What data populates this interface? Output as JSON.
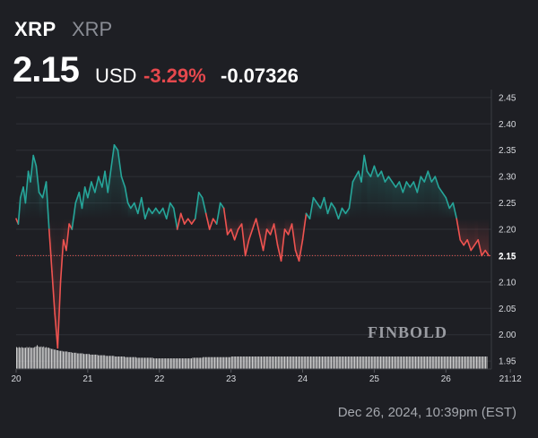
{
  "header": {
    "symbol": "XRP",
    "name": "XRP",
    "price": "2.15",
    "currency": "USD",
    "change_pct": "-3.29%",
    "change_abs": "-0.07326"
  },
  "watermark": "FINBOLD",
  "footer": {
    "timestamp": "Dec 26, 2024, 10:39pm (EST)"
  },
  "colors": {
    "background": "#1e1f24",
    "up": "#26a69a",
    "down": "#ef5350",
    "volume": "#e6e6e6",
    "grid": "#2e3036"
  },
  "chart_data": {
    "type": "line",
    "ylim": [
      1.935,
      2.465
    ],
    "y_ticks": [
      "2.45",
      "2.40",
      "2.35",
      "2.30",
      "2.25",
      "2.20",
      "2.15",
      "2.10",
      "2.05",
      "2.00",
      "1.95"
    ],
    "x_ticks": [
      {
        "label": "20",
        "x": 20
      },
      {
        "label": "21",
        "x": 21
      },
      {
        "label": "22",
        "x": 22
      },
      {
        "label": "23",
        "x": 23
      },
      {
        "label": "24",
        "x": 24
      },
      {
        "label": "25",
        "x": 25
      },
      {
        "label": "26",
        "x": 26
      },
      {
        "label": "21:12",
        "x": 26.9
      }
    ],
    "xlim": [
      20,
      27
    ],
    "baseline": 2.22,
    "last_value": "2.15",
    "series": [
      {
        "values": [
          [
            20.0,
            2.22
          ],
          [
            20.03,
            2.21
          ],
          [
            20.06,
            2.26
          ],
          [
            20.1,
            2.28
          ],
          [
            20.13,
            2.25
          ],
          [
            20.17,
            2.31
          ],
          [
            20.2,
            2.29
          ],
          [
            20.24,
            2.34
          ],
          [
            20.28,
            2.32
          ],
          [
            20.32,
            2.27
          ],
          [
            20.37,
            2.26
          ],
          [
            20.42,
            2.29
          ],
          [
            20.46,
            2.2
          ],
          [
            20.5,
            2.12
          ],
          [
            20.54,
            2.04
          ],
          [
            20.58,
            1.975
          ],
          [
            20.62,
            2.1
          ],
          [
            20.66,
            2.18
          ],
          [
            20.7,
            2.16
          ],
          [
            20.74,
            2.21
          ],
          [
            20.78,
            2.2
          ],
          [
            20.83,
            2.25
          ],
          [
            20.88,
            2.27
          ],
          [
            20.92,
            2.24
          ],
          [
            20.96,
            2.28
          ],
          [
            21.0,
            2.26
          ],
          [
            21.05,
            2.29
          ],
          [
            21.1,
            2.27
          ],
          [
            21.15,
            2.3
          ],
          [
            21.2,
            2.28
          ],
          [
            21.24,
            2.31
          ],
          [
            21.28,
            2.27
          ],
          [
            21.33,
            2.32
          ],
          [
            21.37,
            2.36
          ],
          [
            21.42,
            2.35
          ],
          [
            21.47,
            2.3
          ],
          [
            21.52,
            2.28
          ],
          [
            21.56,
            2.25
          ],
          [
            21.6,
            2.24
          ],
          [
            21.65,
            2.25
          ],
          [
            21.7,
            2.23
          ],
          [
            21.75,
            2.26
          ],
          [
            21.8,
            2.22
          ],
          [
            21.85,
            2.24
          ],
          [
            21.9,
            2.23
          ],
          [
            21.95,
            2.24
          ],
          [
            22.0,
            2.23
          ],
          [
            22.05,
            2.24
          ],
          [
            22.1,
            2.22
          ],
          [
            22.15,
            2.25
          ],
          [
            22.2,
            2.24
          ],
          [
            22.25,
            2.2
          ],
          [
            22.3,
            2.23
          ],
          [
            22.35,
            2.21
          ],
          [
            22.4,
            2.22
          ],
          [
            22.45,
            2.21
          ],
          [
            22.5,
            2.22
          ],
          [
            22.55,
            2.27
          ],
          [
            22.6,
            2.26
          ],
          [
            22.65,
            2.23
          ],
          [
            22.7,
            2.2
          ],
          [
            22.75,
            2.22
          ],
          [
            22.8,
            2.21
          ],
          [
            22.85,
            2.25
          ],
          [
            22.9,
            2.24
          ],
          [
            22.95,
            2.19
          ],
          [
            23.0,
            2.2
          ],
          [
            23.05,
            2.18
          ],
          [
            23.1,
            2.2
          ],
          [
            23.15,
            2.21
          ],
          [
            23.2,
            2.15
          ],
          [
            23.25,
            2.18
          ],
          [
            23.3,
            2.2
          ],
          [
            23.35,
            2.22
          ],
          [
            23.4,
            2.19
          ],
          [
            23.45,
            2.16
          ],
          [
            23.5,
            2.2
          ],
          [
            23.55,
            2.19
          ],
          [
            23.6,
            2.21
          ],
          [
            23.65,
            2.17
          ],
          [
            23.7,
            2.14
          ],
          [
            23.75,
            2.2
          ],
          [
            23.8,
            2.19
          ],
          [
            23.85,
            2.21
          ],
          [
            23.9,
            2.16
          ],
          [
            23.95,
            2.14
          ],
          [
            24.0,
            2.18
          ],
          [
            24.05,
            2.23
          ],
          [
            24.1,
            2.22
          ],
          [
            24.15,
            2.26
          ],
          [
            24.2,
            2.25
          ],
          [
            24.25,
            2.24
          ],
          [
            24.3,
            2.26
          ],
          [
            24.35,
            2.23
          ],
          [
            24.4,
            2.25
          ],
          [
            24.45,
            2.24
          ],
          [
            24.5,
            2.22
          ],
          [
            24.55,
            2.24
          ],
          [
            24.6,
            2.23
          ],
          [
            24.65,
            2.24
          ],
          [
            24.7,
            2.29
          ],
          [
            24.74,
            2.3
          ],
          [
            24.78,
            2.31
          ],
          [
            24.82,
            2.29
          ],
          [
            24.86,
            2.34
          ],
          [
            24.9,
            2.31
          ],
          [
            24.95,
            2.3
          ],
          [
            25.0,
            2.32
          ],
          [
            25.05,
            2.3
          ],
          [
            25.1,
            2.31
          ],
          [
            25.15,
            2.29
          ],
          [
            25.2,
            2.3
          ],
          [
            25.25,
            2.29
          ],
          [
            25.3,
            2.28
          ],
          [
            25.35,
            2.29
          ],
          [
            25.4,
            2.27
          ],
          [
            25.45,
            2.29
          ],
          [
            25.5,
            2.28
          ],
          [
            25.55,
            2.29
          ],
          [
            25.6,
            2.27
          ],
          [
            25.65,
            2.3
          ],
          [
            25.7,
            2.29
          ],
          [
            25.75,
            2.31
          ],
          [
            25.8,
            2.29
          ],
          [
            25.85,
            2.3
          ],
          [
            25.9,
            2.28
          ],
          [
            25.95,
            2.27
          ],
          [
            26.0,
            2.26
          ],
          [
            26.05,
            2.24
          ],
          [
            26.1,
            2.25
          ],
          [
            26.15,
            2.22
          ],
          [
            26.2,
            2.18
          ],
          [
            26.25,
            2.17
          ],
          [
            26.3,
            2.18
          ],
          [
            26.35,
            2.16
          ],
          [
            26.4,
            2.17
          ],
          [
            26.45,
            2.18
          ],
          [
            26.5,
            2.15
          ],
          [
            26.55,
            2.16
          ],
          [
            26.6,
            2.15
          ]
        ]
      }
    ],
    "volume": [
      35,
      34,
      35,
      34,
      35,
      34,
      34,
      34,
      35,
      34,
      35,
      34,
      34,
      34,
      35,
      36,
      38,
      36,
      35,
      36,
      35,
      36,
      34,
      35,
      34,
      34,
      33,
      32,
      32,
      31,
      31,
      30,
      30,
      29,
      29,
      29,
      28,
      28,
      28,
      28,
      27,
      27,
      27,
      26,
      26,
      26,
      26,
      25,
      25,
      25,
      25,
      25,
      24,
      24,
      24,
      24,
      24,
      23,
      23,
      23,
      23,
      23,
      23,
      22,
      22,
      22,
      22,
      22,
      22,
      21,
      21,
      21,
      21,
      21,
      21,
      21,
      20,
      20,
      20,
      20,
      20,
      20,
      20,
      20,
      19,
      19,
      19,
      19,
      19,
      19,
      19,
      19,
      19,
      18,
      18,
      18,
      18,
      18,
      18,
      18,
      18,
      18,
      18,
      18,
      18,
      18,
      17,
      17,
      17,
      17,
      17,
      17,
      17,
      17,
      17,
      17,
      17,
      17,
      17,
      17,
      17,
      17,
      17,
      17,
      17,
      17,
      17,
      17,
      17,
      17,
      17,
      17,
      17,
      17,
      17,
      17,
      18,
      18,
      18,
      18,
      18,
      18,
      18,
      18,
      19,
      19,
      19,
      19,
      19,
      19,
      19,
      19,
      19,
      19,
      19,
      19,
      19,
      19,
      19,
      19,
      19,
      19,
      19,
      19,
      19,
      19,
      20,
      20,
      20,
      20,
      20,
      20,
      20,
      20,
      20,
      20,
      20,
      20,
      20,
      20,
      20,
      20,
      20,
      20,
      20,
      20,
      20,
      20,
      20,
      20,
      20,
      20,
      20,
      20,
      20,
      20,
      20,
      20,
      20,
      20,
      20,
      20,
      20,
      20,
      20,
      20,
      20,
      20,
      20,
      20,
      20,
      20,
      20,
      20,
      20,
      20,
      20,
      20,
      20,
      20,
      20,
      20,
      20,
      20,
      20,
      20,
      20,
      20,
      20,
      20,
      20,
      20,
      20,
      20,
      20,
      20,
      20,
      20,
      20,
      20,
      20,
      20,
      20,
      20,
      20,
      20,
      20,
      20,
      20,
      20,
      20,
      20,
      20,
      20,
      20,
      20,
      20,
      20,
      20,
      20,
      20,
      20,
      20,
      20,
      20,
      20,
      20,
      20,
      20,
      20,
      20,
      20,
      20,
      20,
      20,
      20,
      20,
      20,
      20,
      20,
      20,
      20,
      20,
      20,
      20,
      20,
      20,
      20,
      20,
      20,
      20,
      20,
      20,
      20,
      20,
      20,
      20,
      20,
      20,
      20,
      20,
      20,
      20,
      20,
      20,
      20,
      20,
      20,
      20,
      20,
      20,
      20,
      20,
      20,
      20,
      20,
      20,
      20,
      20,
      20,
      20,
      20,
      20,
      20,
      20,
      20,
      20,
      20,
      20,
      20,
      20,
      20,
      20,
      20,
      20,
      20,
      20,
      20,
      20,
      20,
      20,
      20,
      20,
      20,
      20,
      20,
      20,
      20,
      20,
      20,
      20,
      20,
      20,
      20,
      20,
      20,
      20,
      20,
      20,
      20,
      20,
      20,
      20,
      20
    ]
  }
}
